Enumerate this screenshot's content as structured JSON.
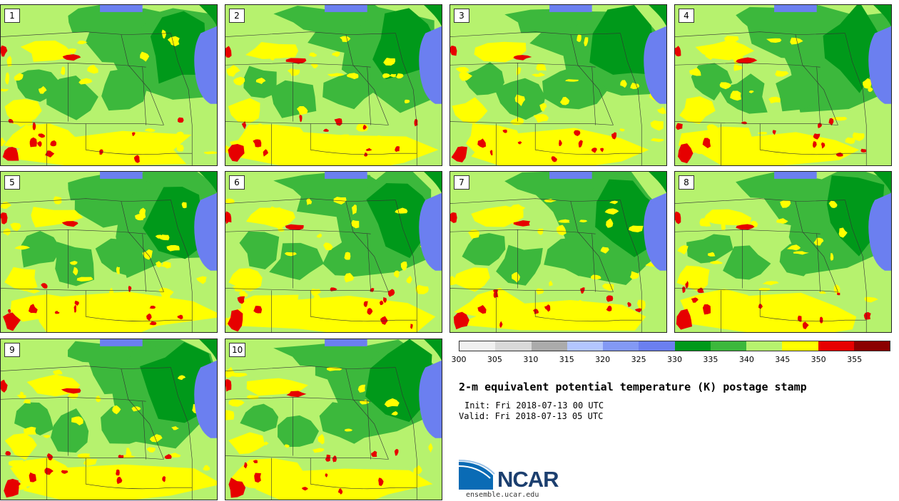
{
  "members": [
    "1",
    "2",
    "3",
    "4",
    "5",
    "6",
    "7",
    "8",
    "9",
    "10"
  ],
  "colorbar": {
    "ticks": [
      "300",
      "305",
      "310",
      "315",
      "320",
      "325",
      "330",
      "335",
      "340",
      "345",
      "350",
      "355"
    ],
    "colors": [
      "#f0f0f0",
      "#d9d9d9",
      "#ababab",
      "#b3c6ff",
      "#8399f5",
      "#6b7ff0",
      "#00991a",
      "#3cb83c",
      "#b6f26e",
      "#ffff00",
      "#e60000",
      "#8b0000"
    ]
  },
  "map_colors": {
    "water": "#6b7ff0",
    "dark_green": "#00991a",
    "mid_green": "#3cb83c",
    "light_green": "#b6f26e",
    "yellow": "#ffff00",
    "red": "#e60000",
    "boundary": "#333333"
  },
  "title": "2-m equivalent potential temperature (K) postage stamp",
  "init": "Init: Fri 2018-07-13 00 UTC",
  "valid": "Valid: Fri 2018-07-13 05 UTC",
  "logo": {
    "text": "NCAR",
    "url": "ensemble.ucar.edu"
  }
}
